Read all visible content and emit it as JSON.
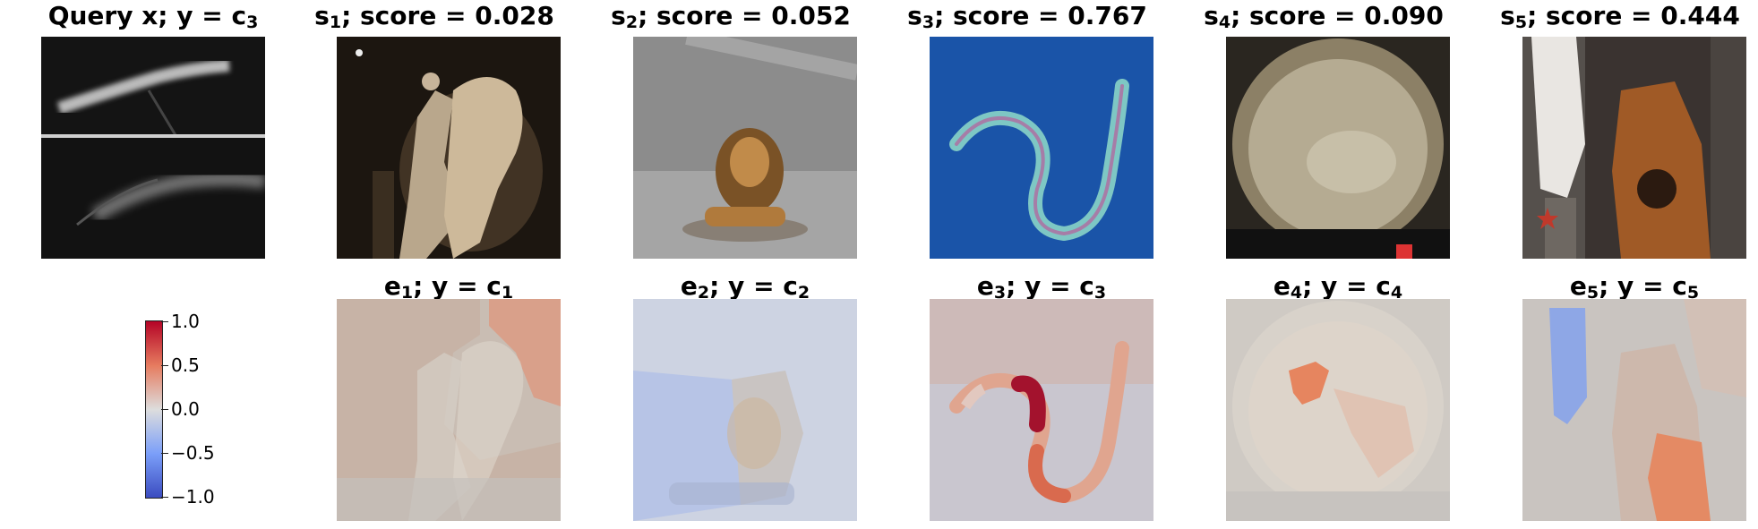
{
  "query": {
    "title_main": "Query x; y",
    "title_eq": "=",
    "title_var": "c",
    "title_sub": "3"
  },
  "samples": [
    {
      "pre": "s",
      "sub": "1",
      "rest": "; score = 0.028"
    },
    {
      "pre": "s",
      "sub": "2",
      "rest": "; score = 0.052"
    },
    {
      "pre": "s",
      "sub": "3",
      "rest": "; score = 0.767"
    },
    {
      "pre": "s",
      "sub": "4",
      "rest": "; score = 0.090"
    },
    {
      "pre": "s",
      "sub": "5",
      "rest": "; score = 0.444"
    }
  ],
  "explanations": [
    {
      "pre": "e",
      "sub": "1",
      "mid": "; y",
      "eq": "=",
      "var": "c",
      "varsub": "1"
    },
    {
      "pre": "e",
      "sub": "2",
      "mid": "; y",
      "eq": "=",
      "var": "c",
      "varsub": "2"
    },
    {
      "pre": "e",
      "sub": "3",
      "mid": "; y",
      "eq": "=",
      "var": "c",
      "varsub": "3"
    },
    {
      "pre": "e",
      "sub": "4",
      "mid": "; y",
      "eq": "=",
      "var": "c",
      "varsub": "4"
    },
    {
      "pre": "e",
      "sub": "5",
      "mid": "; y",
      "eq": "=",
      "var": "c",
      "varsub": "5"
    }
  ],
  "colorbar": {
    "ticks": [
      "1.0",
      "0.5",
      "0.0",
      "−0.5",
      "−1.0"
    ],
    "colormap": [
      "#b40426",
      "#e67b5f",
      "#dddddd",
      "#7b9ff9",
      "#3b4cc0"
    ]
  }
}
